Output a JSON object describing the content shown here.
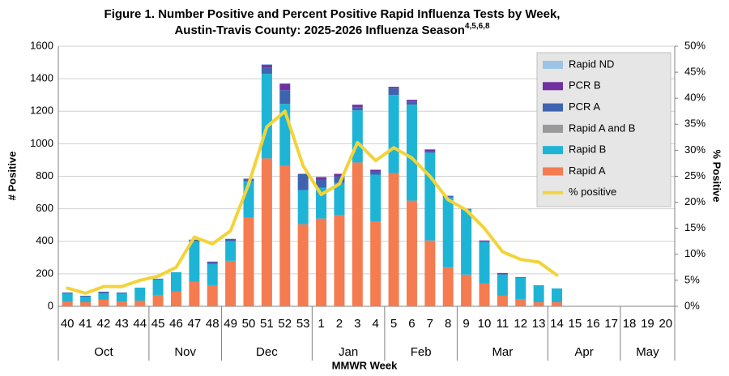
{
  "chart_data": {
    "type": "bar",
    "title": [
      "Figure 1. Number Positive and Percent Positive Rapid Influenza Tests by Week,",
      "Austin-Travis County:  2025-2026 Influenza Season"
    ],
    "title_superscript": "4,5,6,8",
    "x_label": "MMWR Week",
    "y_label": "# Positive",
    "y2_label": "% Positive",
    "categories": [
      "40",
      "41",
      "42",
      "43",
      "44",
      "45",
      "46",
      "47",
      "48",
      "49",
      "50",
      "51",
      "52",
      "53",
      "1",
      "2",
      "3",
      "4",
      "5",
      "6",
      "7",
      "8",
      "9",
      "10",
      "11",
      "12",
      "13",
      "14",
      "15",
      "16",
      "17",
      "18",
      "19",
      "20"
    ],
    "month_groups": [
      {
        "label": "Oct",
        "count": 5
      },
      {
        "label": "Nov",
        "count": 4
      },
      {
        "label": "Dec",
        "count": 5
      },
      {
        "label": "Jan",
        "count": 4
      },
      {
        "label": "Feb",
        "count": 4
      },
      {
        "label": "Mar",
        "count": 5
      },
      {
        "label": "Apr",
        "count": 4
      },
      {
        "label": "May",
        "count": 3
      }
    ],
    "ylim": [
      0,
      1600
    ],
    "yticks": [
      0,
      200,
      400,
      600,
      800,
      1000,
      1200,
      1400,
      1600
    ],
    "y2lim": [
      0,
      50
    ],
    "y2ticks": [
      {
        "value": 0,
        "label": "0%"
      },
      {
        "value": 5,
        "label": "5%"
      },
      {
        "value": 10,
        "label": "10%"
      },
      {
        "value": 15,
        "label": "15%"
      },
      {
        "value": 20,
        "label": "20%"
      },
      {
        "value": 25,
        "label": "25%"
      },
      {
        "value": 30,
        "label": "30%"
      },
      {
        "value": 35,
        "label": "35%"
      },
      {
        "value": 40,
        "label": "40%"
      },
      {
        "value": 45,
        "label": "45%"
      },
      {
        "value": 50,
        "label": "50%"
      }
    ],
    "grid": true,
    "stacked": true,
    "series": [
      {
        "name": "Rapid A",
        "color": "#f47c50",
        "values": [
          30,
          25,
          40,
          30,
          35,
          70,
          90,
          150,
          130,
          280,
          545,
          910,
          865,
          505,
          540,
          560,
          885,
          520,
          820,
          650,
          405,
          240,
          195,
          140,
          65,
          45,
          25,
          25,
          null,
          null,
          null,
          null,
          null,
          null
        ]
      },
      {
        "name": "Rapid B",
        "color": "#1eb4d6",
        "values": [
          50,
          35,
          40,
          50,
          80,
          95,
          120,
          250,
          130,
          120,
          225,
          520,
          380,
          210,
          190,
          200,
          320,
          290,
          480,
          590,
          540,
          430,
          400,
          255,
          130,
          130,
          105,
          85,
          null,
          null,
          null,
          null,
          null,
          null
        ]
      },
      {
        "name": "Rapid A and B",
        "color": "#999999",
        "values": [
          0,
          0,
          0,
          0,
          0,
          0,
          0,
          0,
          0,
          0,
          0,
          0,
          0,
          0,
          0,
          0,
          0,
          0,
          0,
          0,
          0,
          0,
          0,
          0,
          0,
          0,
          0,
          0,
          null,
          null,
          null,
          null,
          null,
          null
        ]
      },
      {
        "name": "PCR A",
        "color": "#3e64b0",
        "values": [
          5,
          5,
          10,
          5,
          0,
          5,
          0,
          10,
          10,
          15,
          15,
          40,
          85,
          100,
          50,
          40,
          20,
          20,
          40,
          20,
          10,
          10,
          5,
          5,
          5,
          5,
          0,
          0,
          null,
          null,
          null,
          null,
          null,
          null
        ]
      },
      {
        "name": "PCR B",
        "color": "#7030a0",
        "values": [
          0,
          0,
          0,
          0,
          0,
          0,
          0,
          0,
          5,
          0,
          0,
          15,
          40,
          0,
          15,
          15,
          15,
          10,
          10,
          10,
          10,
          0,
          0,
          5,
          5,
          0,
          0,
          0,
          null,
          null,
          null,
          null,
          null,
          null
        ]
      },
      {
        "name": "Rapid ND",
        "color": "#9dc3e6",
        "values": [
          0,
          0,
          0,
          0,
          0,
          0,
          0,
          0,
          0,
          0,
          0,
          5,
          0,
          0,
          0,
          0,
          0,
          0,
          0,
          0,
          0,
          0,
          0,
          0,
          0,
          0,
          0,
          0,
          null,
          null,
          null,
          null,
          null,
          null
        ]
      },
      {
        "name": "% positive",
        "type": "line",
        "axis": "y2",
        "color": "#f2d43a",
        "values": [
          3.5,
          2.5,
          3.8,
          3.8,
          5,
          5.8,
          7.5,
          13.3,
          12,
          14.5,
          23.5,
          34.5,
          37.5,
          27,
          21.5,
          23.5,
          31.5,
          28,
          30.5,
          28.5,
          25,
          20.5,
          18.5,
          15,
          10.5,
          9,
          8.5,
          6,
          null,
          null,
          null,
          null,
          null,
          null
        ]
      }
    ],
    "legend": "top-right"
  }
}
